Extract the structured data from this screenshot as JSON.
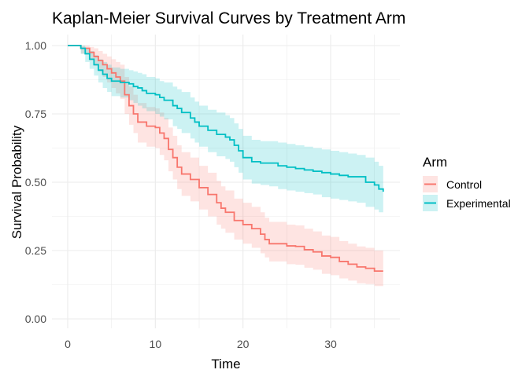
{
  "chart_data": {
    "type": "line",
    "subtype": "step",
    "title": "Kaplan-Meier Survival Curves by Treatment Arm",
    "xlabel": "Time",
    "ylabel": "Survival Probability",
    "xlim": [
      -1,
      37
    ],
    "ylim": [
      -0.03,
      1.03
    ],
    "xticks": [
      0,
      10,
      20,
      30
    ],
    "xtick_labels": [
      "0",
      "10",
      "20",
      "30"
    ],
    "yticks": [
      0,
      0.25,
      0.5,
      0.75,
      1.0
    ],
    "ytick_labels": [
      "0.00",
      "0.25",
      "0.50",
      "0.75",
      "1.00"
    ],
    "grid": true,
    "legend": {
      "title": "Arm",
      "position": "right"
    },
    "series": [
      {
        "name": "Control",
        "color": "#F8766D",
        "x": [
          0,
          1.5,
          2.5,
          3,
          3.5,
          4,
          4.5,
          5,
          5.5,
          6,
          6.5,
          7,
          7.5,
          8,
          9,
          10,
          10.5,
          11,
          11.5,
          12,
          12.5,
          13,
          14,
          15,
          16,
          17,
          17.5,
          18,
          19,
          20,
          21,
          22,
          22.5,
          23,
          25,
          26,
          27,
          28,
          29,
          30,
          31,
          32,
          33,
          34,
          35,
          36
        ],
        "survival": [
          1.0,
          0.99,
          0.975,
          0.96,
          0.945,
          0.93,
          0.915,
          0.9,
          0.885,
          0.87,
          0.82,
          0.78,
          0.75,
          0.72,
          0.705,
          0.7,
          0.68,
          0.66,
          0.62,
          0.59,
          0.555,
          0.53,
          0.51,
          0.48,
          0.455,
          0.425,
          0.405,
          0.39,
          0.36,
          0.345,
          0.33,
          0.31,
          0.29,
          0.275,
          0.267,
          0.265,
          0.253,
          0.245,
          0.23,
          0.225,
          0.21,
          0.2,
          0.19,
          0.185,
          0.175,
          0.175
        ],
        "lower": [
          1.0,
          0.97,
          0.945,
          0.925,
          0.905,
          0.885,
          0.865,
          0.845,
          0.825,
          0.805,
          0.75,
          0.71,
          0.68,
          0.645,
          0.63,
          0.625,
          0.6,
          0.58,
          0.54,
          0.51,
          0.475,
          0.45,
          0.43,
          0.4,
          0.375,
          0.345,
          0.33,
          0.315,
          0.29,
          0.275,
          0.26,
          0.24,
          0.225,
          0.21,
          0.2,
          0.198,
          0.187,
          0.18,
          0.165,
          0.16,
          0.148,
          0.14,
          0.13,
          0.127,
          0.12,
          0.12
        ],
        "upper": [
          1.0,
          1.0,
          0.995,
          0.99,
          0.98,
          0.97,
          0.96,
          0.95,
          0.94,
          0.93,
          0.885,
          0.85,
          0.82,
          0.79,
          0.775,
          0.77,
          0.755,
          0.735,
          0.7,
          0.67,
          0.635,
          0.61,
          0.59,
          0.56,
          0.535,
          0.505,
          0.485,
          0.47,
          0.44,
          0.425,
          0.41,
          0.39,
          0.37,
          0.355,
          0.345,
          0.342,
          0.33,
          0.32,
          0.305,
          0.3,
          0.285,
          0.275,
          0.265,
          0.26,
          0.25,
          0.25
        ]
      },
      {
        "name": "Experimental",
        "color": "#00BFC4",
        "x": [
          0,
          1.5,
          2,
          2.5,
          3,
          3.5,
          4,
          4.5,
          5,
          6,
          7,
          7.5,
          8,
          8.5,
          9,
          10,
          10.5,
          11,
          12,
          12.5,
          13,
          14,
          14.5,
          15,
          16,
          17,
          18,
          18.5,
          19,
          19.5,
          20,
          21,
          22,
          23,
          24,
          25,
          26,
          27,
          28,
          29,
          30,
          31,
          32,
          33,
          34,
          35,
          35.5,
          36
        ],
        "survival": [
          1.0,
          0.99,
          0.97,
          0.95,
          0.93,
          0.91,
          0.895,
          0.88,
          0.87,
          0.865,
          0.86,
          0.85,
          0.845,
          0.835,
          0.825,
          0.82,
          0.81,
          0.8,
          0.78,
          0.77,
          0.755,
          0.735,
          0.72,
          0.705,
          0.69,
          0.675,
          0.665,
          0.655,
          0.635,
          0.615,
          0.59,
          0.575,
          0.57,
          0.57,
          0.56,
          0.555,
          0.55,
          0.545,
          0.54,
          0.535,
          0.53,
          0.525,
          0.52,
          0.52,
          0.5,
          0.49,
          0.475,
          0.465
        ],
        "lower": [
          1.0,
          0.97,
          0.94,
          0.915,
          0.89,
          0.865,
          0.845,
          0.83,
          0.815,
          0.81,
          0.8,
          0.79,
          0.78,
          0.77,
          0.76,
          0.75,
          0.74,
          0.73,
          0.705,
          0.695,
          0.68,
          0.66,
          0.645,
          0.63,
          0.61,
          0.595,
          0.585,
          0.575,
          0.555,
          0.535,
          0.51,
          0.495,
          0.49,
          0.485,
          0.475,
          0.47,
          0.465,
          0.46,
          0.455,
          0.445,
          0.44,
          0.435,
          0.43,
          0.425,
          0.41,
          0.4,
          0.39,
          0.38
        ],
        "upper": [
          1.0,
          1.0,
          0.99,
          0.98,
          0.965,
          0.95,
          0.94,
          0.93,
          0.92,
          0.915,
          0.91,
          0.905,
          0.9,
          0.895,
          0.885,
          0.88,
          0.87,
          0.865,
          0.85,
          0.84,
          0.83,
          0.81,
          0.795,
          0.78,
          0.765,
          0.755,
          0.745,
          0.735,
          0.715,
          0.695,
          0.67,
          0.655,
          0.65,
          0.65,
          0.645,
          0.64,
          0.635,
          0.63,
          0.625,
          0.62,
          0.615,
          0.61,
          0.605,
          0.6,
          0.59,
          0.575,
          0.56,
          0.55
        ]
      }
    ]
  }
}
